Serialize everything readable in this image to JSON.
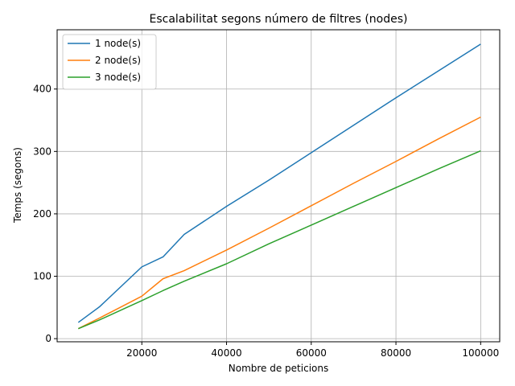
{
  "chart_data": {
    "type": "line",
    "title": "Escalabilitat segons número de filtres (nodes)",
    "xlabel": "Nombre de peticions",
    "ylabel": "Temps (segons)",
    "xlim": [
      0,
      104500
    ],
    "ylim": [
      -5,
      495
    ],
    "xticks": [
      20000,
      40000,
      60000,
      80000,
      100000
    ],
    "yticks": [
      0,
      100,
      200,
      300,
      400
    ],
    "grid": true,
    "legend_position": "top-left",
    "series": [
      {
        "name": "1 node(s)",
        "color": "#1f77b4",
        "x": [
          5000,
          10000,
          20000,
          25000,
          30000,
          40000,
          50000,
          60000,
          70000,
          80000,
          90000,
          100000
        ],
        "y": [
          26,
          51,
          115,
          131,
          167,
          212,
          254,
          298,
          342,
          386,
          429,
          472
        ]
      },
      {
        "name": "2 node(s)",
        "color": "#ff7f0e",
        "x": [
          5000,
          10000,
          20000,
          25000,
          30000,
          40000,
          50000,
          60000,
          70000,
          80000,
          90000,
          100000
        ],
        "y": [
          16,
          33,
          68,
          96,
          109,
          142,
          177,
          213,
          249,
          284,
          320,
          355
        ]
      },
      {
        "name": "3 node(s)",
        "color": "#2ca02c",
        "x": [
          5000,
          10000,
          20000,
          25000,
          30000,
          40000,
          50000,
          60000,
          70000,
          80000,
          90000,
          100000
        ],
        "y": [
          16,
          30,
          61,
          77,
          92,
          120,
          152,
          182,
          212,
          242,
          272,
          301
        ]
      }
    ]
  }
}
